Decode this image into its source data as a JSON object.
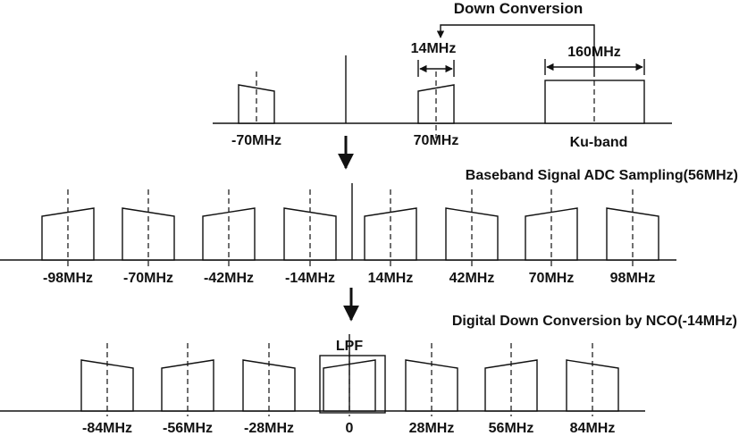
{
  "top": {
    "title": "Down Conversion",
    "bandwidth_if": "14MHz",
    "bandwidth_ku": "160MHz",
    "freq_labels": [
      "-70MHz",
      "70MHz",
      "Ku-band"
    ]
  },
  "middle": {
    "title": "Baseband Signal ADC Sampling(56MHz)",
    "freq_labels": [
      "-98MHz",
      "-70MHz",
      "-42MHz",
      "-14MHz",
      "14MHz",
      "42MHz",
      "70MHz",
      "98MHz"
    ]
  },
  "bottom": {
    "title": "Digital Down Conversion by NCO(-14MHz)",
    "filter_label": "LPF",
    "freq_labels": [
      "-84MHz",
      "-56MHz",
      "-28MHz",
      "0",
      "28MHz",
      "56MHz",
      "84MHz"
    ]
  }
}
